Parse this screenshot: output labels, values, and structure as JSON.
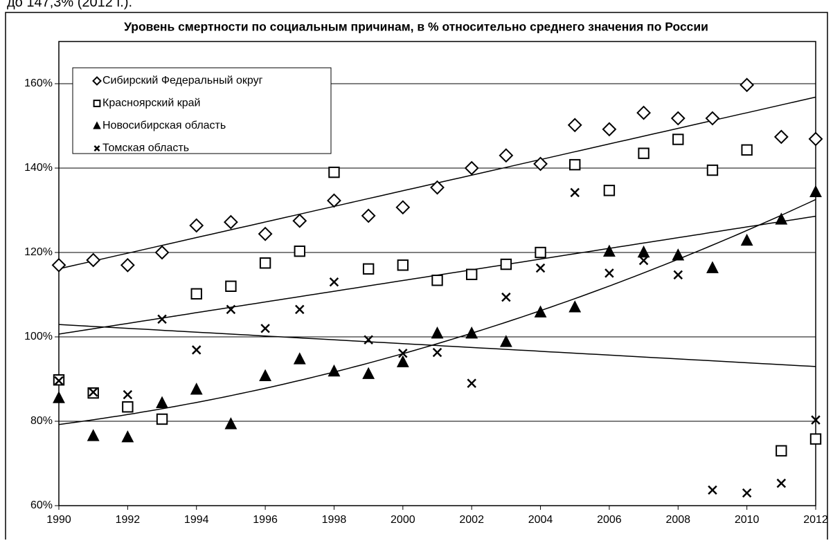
{
  "chart_data": {
    "type": "scatter",
    "caption": "до 147,3% (2012 г.).",
    "title": "Уровень смертности по социальным причинам, в % относительно среднего значения по России",
    "x": [
      1990,
      1991,
      1992,
      1993,
      1994,
      1995,
      1996,
      1997,
      1998,
      1999,
      2000,
      2001,
      2002,
      2003,
      2004,
      2005,
      2006,
      2007,
      2008,
      2009,
      2010,
      2011,
      2012
    ],
    "xlim": [
      1990,
      2012
    ],
    "xticks": [
      1990,
      1992,
      1994,
      1996,
      1998,
      2000,
      2002,
      2004,
      2006,
      2008,
      2010,
      2012
    ],
    "ylim": [
      60,
      170
    ],
    "yticks": [
      {
        "value": 60,
        "label": "60%"
      },
      {
        "value": 80,
        "label": "80%"
      },
      {
        "value": 100,
        "label": "100%"
      },
      {
        "value": 120,
        "label": "120%"
      },
      {
        "value": 140,
        "label": "140%"
      },
      {
        "value": 160,
        "label": "160%"
      }
    ],
    "grid": true,
    "legend": "upper left",
    "series": [
      {
        "name": "Сибирский Федеральный округ",
        "color": "#000000",
        "marker": "diamond",
        "trendline": "linear",
        "values": [
          117.0,
          118.2,
          117.0,
          120.0,
          126.4,
          127.2,
          124.4,
          127.5,
          132.3,
          128.7,
          130.7,
          135.4,
          140.0,
          143.0,
          141.0,
          150.2,
          149.2,
          153.1,
          151.8,
          151.8,
          159.7,
          147.4,
          146.9
        ]
      },
      {
        "name": "Красноярский край",
        "color": "#000000",
        "marker": "square",
        "trendline": "linear",
        "values": [
          89.8,
          86.7,
          83.4,
          80.5,
          110.2,
          112.0,
          117.5,
          120.3,
          139.0,
          116.1,
          117.0,
          113.4,
          114.8,
          117.2,
          120.0,
          140.8,
          134.7,
          143.5,
          146.8,
          139.5,
          144.3,
          73.0,
          75.8
        ]
      },
      {
        "name": "Новосибирская область",
        "color": "#000000",
        "marker": "triangle",
        "trendline": "poly2",
        "values": [
          85.5,
          76.5,
          76.2,
          84.3,
          87.5,
          79.3,
          90.7,
          94.7,
          91.8,
          91.2,
          94.0,
          100.8,
          100.8,
          98.8,
          105.8,
          107.0,
          120.2,
          120.0,
          119.3,
          116.3,
          122.8,
          127.8,
          134.3
        ]
      },
      {
        "name": "Томская область",
        "color": "#000000",
        "marker": "cross",
        "trendline": "linear",
        "values": [
          89.6,
          86.9,
          86.3,
          104.2,
          96.9,
          106.5,
          102.0,
          106.5,
          113.0,
          99.3,
          96.1,
          96.3,
          89.0,
          109.4,
          116.3,
          134.2,
          115.1,
          118.1,
          114.7,
          63.7,
          63.0,
          65.3,
          80.3
        ]
      }
    ]
  }
}
